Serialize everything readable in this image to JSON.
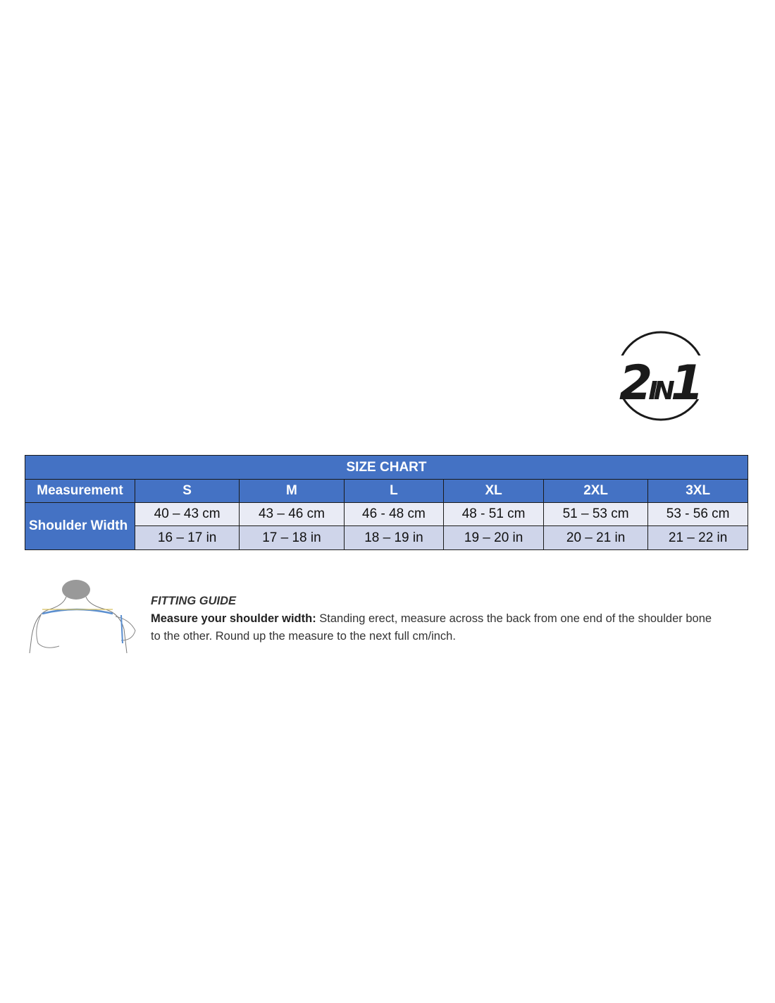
{
  "logo": {
    "text": "2IN1"
  },
  "size_chart": {
    "title": "SIZE CHART",
    "header_label": "Measurement",
    "sizes": [
      "S",
      "M",
      "L",
      "XL",
      "2XL",
      "3XL"
    ],
    "row_label": "Shoulder Width",
    "cm": [
      "40 – 43 cm",
      "43 – 46 cm",
      "46 - 48 cm",
      "48 - 51 cm",
      "51 – 53 cm",
      "53 - 56 cm"
    ],
    "in": [
      "16 – 17 in",
      "17 – 18 in",
      "18 – 19 in",
      "19 – 20 in",
      "20 – 21 in",
      "21 – 22 in"
    ],
    "colors": {
      "header": "#4472c4",
      "cm_row": "#e9ebf5",
      "in_row": "#cfd5ea"
    }
  },
  "fitting_guide": {
    "title": "FITTING GUIDE",
    "lead": "Measure your shoulder width:",
    "text": " Standing erect, measure across the back from one end of the shoulder bone to the other. Round up the measure to the next full cm/inch."
  }
}
